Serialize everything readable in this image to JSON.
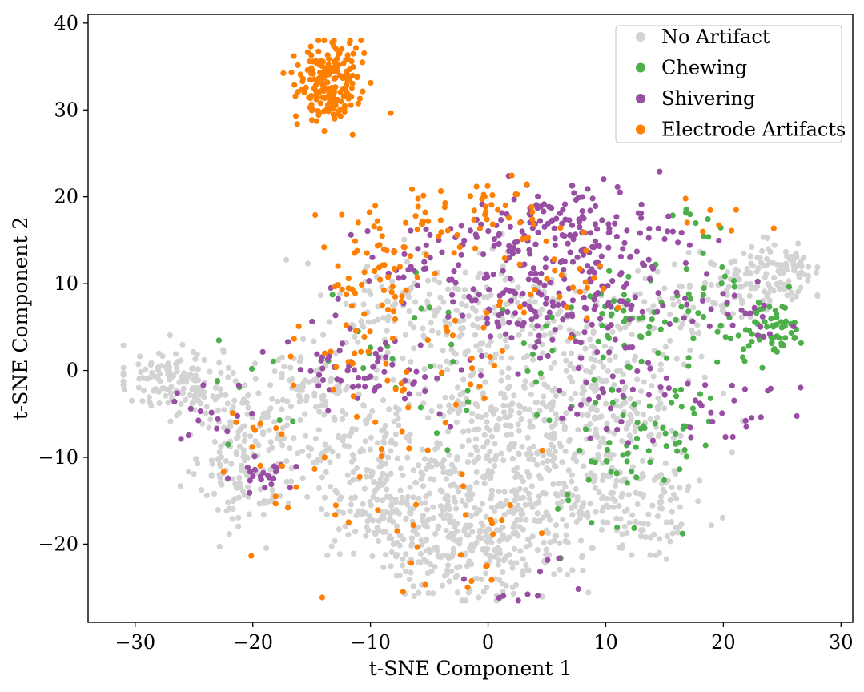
{
  "chart_data": {
    "type": "scatter",
    "title": "",
    "xlabel": "t-SNE Component 1",
    "ylabel": "t-SNE Component 2",
    "xlim": [
      -34,
      31
    ],
    "ylim": [
      -29,
      41
    ],
    "xticks": [
      -30,
      -20,
      -10,
      0,
      10,
      20,
      30
    ],
    "yticks": [
      -20,
      -10,
      0,
      10,
      20,
      30,
      40
    ],
    "xtick_labels": [
      "−30",
      "−20",
      "−10",
      "0",
      "10",
      "20",
      "30"
    ],
    "ytick_labels": [
      "−20",
      "−10",
      "0",
      "10",
      "20",
      "30",
      "40"
    ],
    "grid": false,
    "legend_position": "top-right",
    "series": [
      {
        "name": "No Artifact",
        "color": "#d3d3d3",
        "clusters": [
          {
            "cx": -27,
            "cy": -1,
            "sx": 2.2,
            "sy": 2.0,
            "n": 130
          },
          {
            "cx": -20.5,
            "cy": -12,
            "sx": 2.0,
            "sy": 3.2,
            "n": 110
          },
          {
            "cx": -21,
            "cy": -5,
            "sx": 2.5,
            "sy": 2.5,
            "n": 60
          },
          {
            "cx": -16,
            "cy": -2,
            "sx": 2.5,
            "sy": 3.0,
            "n": 60
          },
          {
            "cx": -9,
            "cy": -16,
            "sx": 3.0,
            "sy": 3.0,
            "n": 110
          },
          {
            "cx": -12,
            "cy": -8,
            "sx": 3.0,
            "sy": 4.0,
            "n": 100
          },
          {
            "cx": -4,
            "cy": -20,
            "sx": 3.0,
            "sy": 3.0,
            "n": 130
          },
          {
            "cx": -5,
            "cy": -10,
            "sx": 3.0,
            "sy": 3.5,
            "n": 100
          },
          {
            "cx": 1,
            "cy": -20,
            "sx": 3.0,
            "sy": 3.5,
            "n": 150
          },
          {
            "cx": 1,
            "cy": -8,
            "sx": 3.0,
            "sy": 4.0,
            "n": 120
          },
          {
            "cx": 5,
            "cy": -14,
            "sx": 3.0,
            "sy": 3.5,
            "n": 100
          },
          {
            "cx": 5,
            "cy": -4,
            "sx": 3.0,
            "sy": 3.0,
            "n": 90
          },
          {
            "cx": 10,
            "cy": -15,
            "sx": 3.0,
            "sy": 3.5,
            "n": 90
          },
          {
            "cx": 10,
            "cy": -5,
            "sx": 2.5,
            "sy": 3.0,
            "n": 70
          },
          {
            "cx": 15,
            "cy": -16,
            "sx": 2.0,
            "sy": 2.5,
            "n": 50
          },
          {
            "cx": 14,
            "cy": -7,
            "sx": 2.5,
            "sy": 3.0,
            "n": 50
          },
          {
            "cx": -3,
            "cy": 3,
            "sx": 4.0,
            "sy": 4.0,
            "n": 130
          },
          {
            "cx": -9,
            "cy": 8,
            "sx": 3.0,
            "sy": 3.0,
            "n": 60
          },
          {
            "cx": 3,
            "cy": 8,
            "sx": 3.0,
            "sy": 3.0,
            "n": 60
          },
          {
            "cx": 9,
            "cy": 3,
            "sx": 3.0,
            "sy": 3.0,
            "n": 60
          },
          {
            "cx": 16,
            "cy": 5,
            "sx": 2.5,
            "sy": 4.0,
            "n": 50
          },
          {
            "cx": 24,
            "cy": 11,
            "sx": 2.2,
            "sy": 2.0,
            "n": 110
          },
          {
            "cx": 20,
            "cy": 9,
            "sx": 1.5,
            "sy": 2.0,
            "n": 30
          }
        ]
      },
      {
        "name": "Chewing",
        "color": "#4daf4a",
        "clusters": [
          {
            "cx": 24,
            "cy": 5,
            "sx": 1.6,
            "sy": 1.8,
            "n": 55
          },
          {
            "cx": 19,
            "cy": 7,
            "sx": 2.0,
            "sy": 3.0,
            "n": 30
          },
          {
            "cx": 12,
            "cy": 6,
            "sx": 2.5,
            "sy": 3.0,
            "n": 45
          },
          {
            "cx": 11,
            "cy": -8,
            "sx": 2.5,
            "sy": 3.0,
            "n": 35
          },
          {
            "cx": 16,
            "cy": -8,
            "sx": 2.0,
            "sy": 3.0,
            "n": 25
          },
          {
            "cx": 5,
            "cy": 0,
            "sx": 4.0,
            "sy": 4.0,
            "n": 20
          },
          {
            "cx": -6,
            "cy": 3,
            "sx": 6.0,
            "sy": 6.0,
            "n": 20
          },
          {
            "cx": -20,
            "cy": -3,
            "sx": 3.0,
            "sy": 3.0,
            "n": 8
          },
          {
            "cx": 18,
            "cy": 17,
            "sx": 1.5,
            "sy": 1.5,
            "n": 8
          },
          {
            "cx": 10,
            "cy": -18,
            "sx": 4.0,
            "sy": 2.0,
            "n": 8
          }
        ]
      },
      {
        "name": "Shivering",
        "color": "#984ea3",
        "clusters": [
          {
            "cx": 7,
            "cy": 16,
            "sx": 4.0,
            "sy": 2.5,
            "n": 150
          },
          {
            "cx": 4,
            "cy": 8,
            "sx": 3.5,
            "sy": 3.5,
            "n": 90
          },
          {
            "cx": 10,
            "cy": 9,
            "sx": 3.0,
            "sy": 3.5,
            "n": 60
          },
          {
            "cx": -4,
            "cy": 13,
            "sx": 4.0,
            "sy": 3.0,
            "n": 50
          },
          {
            "cx": -13,
            "cy": 1,
            "sx": 3.0,
            "sy": 2.5,
            "n": 40
          },
          {
            "cx": -19,
            "cy": -12,
            "sx": 1.5,
            "sy": 1.5,
            "n": 22
          },
          {
            "cx": -24,
            "cy": -4,
            "sx": 1.5,
            "sy": 2.0,
            "n": 15
          },
          {
            "cx": 20,
            "cy": -4,
            "sx": 3.0,
            "sy": 2.0,
            "n": 25
          },
          {
            "cx": 20,
            "cy": 6,
            "sx": 3.0,
            "sy": 3.0,
            "n": 30
          },
          {
            "cx": 10,
            "cy": -3,
            "sx": 3.0,
            "sy": 3.0,
            "n": 30
          },
          {
            "cx": 2,
            "cy": -23,
            "sx": 3.0,
            "sy": 2.0,
            "n": 10
          },
          {
            "cx": -7,
            "cy": 0,
            "sx": 3.0,
            "sy": 3.0,
            "n": 25
          }
        ]
      },
      {
        "name": "Electrode Artifacts",
        "color": "#ff7f00",
        "clusters": [
          {
            "cx": -13.5,
            "cy": 33,
            "sx": 1.4,
            "sy": 2.5,
            "n": 190
          },
          {
            "cx": -5,
            "cy": 17,
            "sx": 3.5,
            "sy": 2.5,
            "n": 55
          },
          {
            "cx": -10,
            "cy": 10,
            "sx": 2.0,
            "sy": 3.0,
            "n": 40
          },
          {
            "cx": 1,
            "cy": 19,
            "sx": 2.0,
            "sy": 1.5,
            "n": 15
          },
          {
            "cx": 6,
            "cy": 11,
            "sx": 3.0,
            "sy": 3.0,
            "n": 30
          },
          {
            "cx": -4,
            "cy": 2,
            "sx": 3.0,
            "sy": 4.0,
            "n": 30
          },
          {
            "cx": -14,
            "cy": 2,
            "sx": 3.0,
            "sy": 3.0,
            "n": 18
          },
          {
            "cx": -10,
            "cy": -15,
            "sx": 5.0,
            "sy": 4.0,
            "n": 22
          },
          {
            "cx": -19,
            "cy": -7,
            "sx": 2.0,
            "sy": 2.0,
            "n": 10
          },
          {
            "cx": 3,
            "cy": -15,
            "sx": 5.0,
            "sy": 4.0,
            "n": 12
          },
          {
            "cx": 20,
            "cy": 17,
            "sx": 2.0,
            "sy": 2.0,
            "n": 8
          },
          {
            "cx": -3,
            "cy": -24,
            "sx": 2.5,
            "sy": 1.5,
            "n": 8
          }
        ]
      }
    ]
  }
}
